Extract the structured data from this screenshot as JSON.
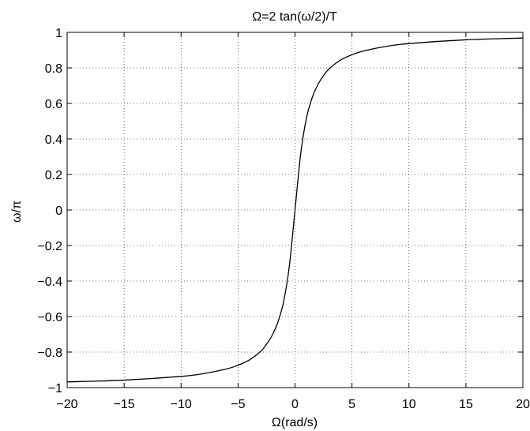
{
  "chart_data": {
    "type": "line",
    "title": "Ω=2 tan(ω/2)/T",
    "xlabel": "Ω(rad/s)",
    "ylabel": "ω/π",
    "xlim": [
      -20,
      20
    ],
    "ylim": [
      -1,
      1
    ],
    "grid": true,
    "grid_style": "dotted",
    "line_color": "#000000",
    "x_ticks": [
      -20,
      -15,
      -10,
      -5,
      0,
      5,
      10,
      15,
      20
    ],
    "x_tick_labels": [
      "−20",
      "−15",
      "−10",
      "−5",
      "0",
      "5",
      "10",
      "15",
      "20"
    ],
    "y_ticks": [
      -1,
      -0.8,
      -0.6,
      -0.4,
      -0.2,
      0,
      0.2,
      0.4,
      0.6,
      0.8,
      1
    ],
    "y_tick_labels": [
      "−1",
      "−0.8",
      "−0.6",
      "−0.4",
      "−0.2",
      "0",
      "0.2",
      "0.4",
      "0.6",
      "0.8",
      "1"
    ],
    "series": [
      {
        "x": [
          -20,
          -15,
          -10,
          -8,
          -6,
          -5,
          -4,
          -3,
          -2.5,
          -2,
          -1.5,
          -1,
          -0.5,
          0,
          0.5,
          1,
          1.5,
          2,
          2.5,
          3,
          4,
          5,
          6,
          8,
          10,
          15,
          20
        ],
        "values": [
          -0.968,
          -0.958,
          -0.937,
          -0.921,
          -0.895,
          -0.874,
          -0.844,
          -0.795,
          -0.756,
          -0.705,
          -0.631,
          -0.516,
          -0.317,
          0,
          0.317,
          0.516,
          0.631,
          0.705,
          0.756,
          0.795,
          0.844,
          0.874,
          0.895,
          0.921,
          0.937,
          0.958,
          0.968
        ]
      }
    ]
  }
}
